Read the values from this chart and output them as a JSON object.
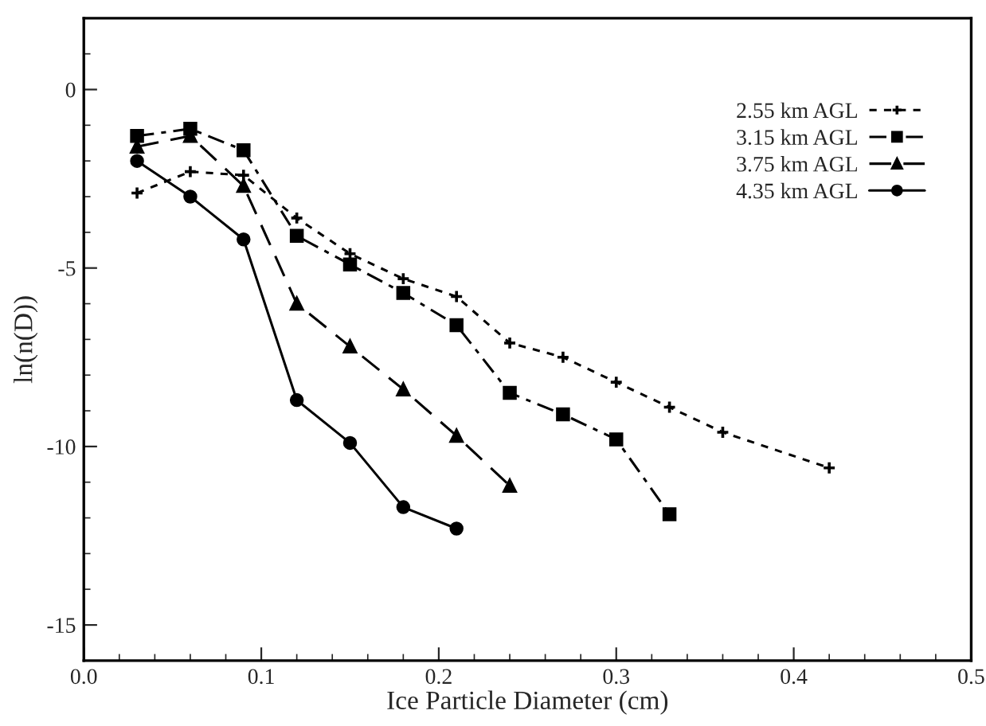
{
  "chart_data": {
    "type": "line",
    "xlabel": "Ice Particle Diameter (cm)",
    "ylabel": "ln(n(D))",
    "xlim": [
      0,
      0.5
    ],
    "xticks": [
      {
        "value": 0,
        "label": "0.0"
      },
      0.1,
      0.2,
      0.3,
      0.4,
      0.5
    ],
    "ylim": [
      -16,
      2
    ],
    "yticks": [
      -15,
      -10,
      -5,
      0
    ],
    "grid": false,
    "legend": "top right",
    "series": [
      {
        "name": "2.55 km AGL",
        "color": "#000000",
        "marker": "cross",
        "line_style": "dotted",
        "x": [
          0.03,
          0.06,
          0.09,
          0.12,
          0.15,
          0.18,
          0.21,
          0.24,
          0.27,
          0.3,
          0.33,
          0.36,
          0.42
        ],
        "values": [
          -2.9,
          -2.3,
          -2.4,
          -3.6,
          -4.6,
          -5.3,
          -5.8,
          -7.1,
          -7.5,
          -8.2,
          -8.9,
          -9.6,
          -10.6
        ]
      },
      {
        "name": "3.15 km AGL",
        "color": "#000000",
        "marker": "square",
        "line_style": "dashdot",
        "x": [
          0.03,
          0.06,
          0.09,
          0.12,
          0.15,
          0.18,
          0.21,
          0.24,
          0.27,
          0.3,
          0.33
        ],
        "values": [
          -1.3,
          -1.1,
          -1.7,
          -4.1,
          -4.9,
          -5.7,
          -6.6,
          -8.5,
          -9.1,
          -9.8,
          -11.9
        ]
      },
      {
        "name": "3.75 km AGL",
        "color": "#000000",
        "marker": "triangle",
        "line_style": "dashed",
        "x": [
          0.03,
          0.06,
          0.09,
          0.12,
          0.15,
          0.18,
          0.21,
          0.24
        ],
        "values": [
          -1.6,
          -1.3,
          -2.7,
          -6.0,
          -7.2,
          -8.4,
          -9.7,
          -11.1
        ]
      },
      {
        "name": "4.35 km AGL",
        "color": "#000000",
        "marker": "circle",
        "line_style": "solid",
        "x": [
          0.03,
          0.06,
          0.09,
          0.12,
          0.15,
          0.18,
          0.21
        ],
        "values": [
          -2.0,
          -3.0,
          -4.2,
          -8.7,
          -9.9,
          -11.7,
          -12.3
        ]
      }
    ]
  }
}
